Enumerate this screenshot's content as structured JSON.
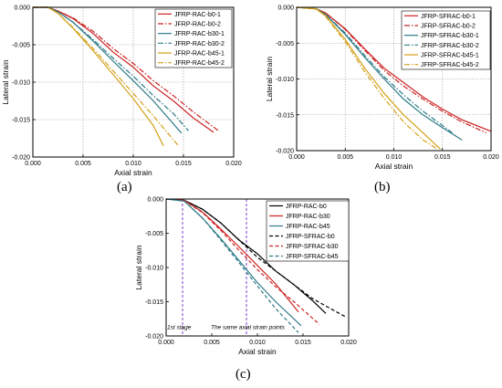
{
  "figure": {
    "panel_labels": [
      "(a)",
      "(b)",
      "(c)"
    ]
  },
  "chart_data": [
    {
      "type": "line",
      "panel": "(a)",
      "xlabel": "Axial strain",
      "ylabel": "Lateral strain",
      "xlim": [
        0.0,
        0.02
      ],
      "ylim": [
        -0.02,
        0.0
      ],
      "x_ticks": [
        "0.000",
        "0.005",
        "0.010",
        "0.015",
        "0.020"
      ],
      "y_ticks": [
        "0.000",
        "-0.005",
        "-0.010",
        "-0.015",
        "-0.020"
      ],
      "x_tick_values": [
        0,
        0.005,
        0.01,
        0.015,
        0.02
      ],
      "y_tick_values": [
        0,
        -0.005,
        -0.01,
        -0.015,
        -0.02
      ],
      "grid": true,
      "legend": "top-right",
      "series": [
        {
          "name": "JFRP-RAC-b0-1",
          "color": "#cc2222",
          "dash": "solid",
          "x": [
            0,
            0.0015,
            0.0025,
            0.004,
            0.006,
            0.008,
            0.01,
            0.012,
            0.014,
            0.016,
            0.018
          ],
          "y": [
            0,
            0,
            -0.0005,
            -0.0015,
            -0.0035,
            -0.006,
            -0.008,
            -0.0105,
            -0.0125,
            -0.0148,
            -0.0167
          ]
        },
        {
          "name": "JFRP-RAC-b0-2",
          "color": "#cc2222",
          "dash": "dashdot",
          "x": [
            0,
            0.0015,
            0.0025,
            0.004,
            0.006,
            0.008,
            0.01,
            0.012,
            0.014,
            0.016,
            0.0185
          ],
          "y": [
            0,
            0,
            -0.0005,
            -0.0014,
            -0.0032,
            -0.0055,
            -0.0075,
            -0.0098,
            -0.0118,
            -0.014,
            -0.0165
          ]
        },
        {
          "name": "JFRP-RAC-b30-1",
          "color": "#2c7a86",
          "dash": "solid",
          "x": [
            0,
            0.0015,
            0.0025,
            0.004,
            0.006,
            0.008,
            0.01,
            0.012,
            0.0135,
            0.0148
          ],
          "y": [
            0,
            0,
            -0.0006,
            -0.002,
            -0.0045,
            -0.0072,
            -0.0098,
            -0.0125,
            -0.0148,
            -0.0168
          ]
        },
        {
          "name": "JFRP-RAC-b30-2",
          "color": "#2c7a86",
          "dash": "dashdot",
          "x": [
            0,
            0.0015,
            0.0025,
            0.004,
            0.006,
            0.008,
            0.01,
            0.012,
            0.014,
            0.0155
          ],
          "y": [
            0,
            0,
            -0.0006,
            -0.002,
            -0.0043,
            -0.0068,
            -0.0092,
            -0.0118,
            -0.0142,
            -0.0165
          ]
        },
        {
          "name": "JFRP-RAC-b45-1",
          "color": "#d4a017",
          "dash": "solid",
          "x": [
            0,
            0.0015,
            0.0025,
            0.004,
            0.006,
            0.008,
            0.01,
            0.012,
            0.013
          ],
          "y": [
            0,
            0,
            -0.0008,
            -0.0028,
            -0.0058,
            -0.009,
            -0.0122,
            -0.0158,
            -0.0185
          ]
        },
        {
          "name": "JFRP-RAC-b45-2",
          "color": "#d4a017",
          "dash": "dashdot",
          "x": [
            0,
            0.0015,
            0.0025,
            0.004,
            0.006,
            0.008,
            0.01,
            0.012,
            0.0145
          ],
          "y": [
            0,
            0,
            -0.0008,
            -0.0027,
            -0.0055,
            -0.0085,
            -0.0115,
            -0.0145,
            -0.0185
          ]
        }
      ]
    },
    {
      "type": "line",
      "panel": "(b)",
      "xlabel": "Axial strain",
      "ylabel": "Lateral strain",
      "xlim": [
        0.0,
        0.02
      ],
      "ylim": [
        -0.02,
        0.0
      ],
      "x_ticks": [
        "0.000",
        "0.005",
        "0.010",
        "0.015",
        "0.020"
      ],
      "y_ticks": [
        "0.000",
        "-0.005",
        "-0.010",
        "-0.015",
        "-0.020"
      ],
      "x_tick_values": [
        0,
        0.005,
        0.01,
        0.015,
        0.02
      ],
      "y_tick_values": [
        0,
        -0.005,
        -0.01,
        -0.015,
        -0.02
      ],
      "grid": true,
      "legend": "top-right",
      "series": [
        {
          "name": "JFRP-SFRAC-b0-1",
          "color": "#cc2222",
          "dash": "solid",
          "x": [
            0,
            0.002,
            0.003,
            0.005,
            0.007,
            0.009,
            0.011,
            0.013,
            0.015,
            0.017,
            0.02
          ],
          "y": [
            0,
            -0.0002,
            -0.0008,
            -0.003,
            -0.0058,
            -0.0085,
            -0.0105,
            -0.0125,
            -0.0142,
            -0.0157,
            -0.0173
          ]
        },
        {
          "name": "JFRP-SFRAC-b0-2",
          "color": "#cc2222",
          "dash": "dashdot",
          "x": [
            0,
            0.002,
            0.003,
            0.005,
            0.007,
            0.009,
            0.011,
            0.013,
            0.015,
            0.017,
            0.0195
          ],
          "y": [
            0,
            -0.0002,
            -0.0008,
            -0.0031,
            -0.006,
            -0.0088,
            -0.011,
            -0.0128,
            -0.0145,
            -0.016,
            -0.0175
          ]
        },
        {
          "name": "JFRP-SFRAC-b30-1",
          "color": "#2c7a86",
          "dash": "solid",
          "x": [
            0,
            0.002,
            0.003,
            0.005,
            0.007,
            0.009,
            0.011,
            0.013,
            0.015,
            0.017
          ],
          "y": [
            0,
            -0.0002,
            -0.001,
            -0.0038,
            -0.007,
            -0.01,
            -0.0128,
            -0.015,
            -0.0168,
            -0.0185
          ]
        },
        {
          "name": "JFRP-SFRAC-b30-2",
          "color": "#2c7a86",
          "dash": "dashdot",
          "x": [
            0,
            0.002,
            0.003,
            0.005,
            0.007,
            0.009,
            0.011,
            0.013,
            0.015,
            0.016
          ],
          "y": [
            0,
            -0.0002,
            -0.001,
            -0.0036,
            -0.0067,
            -0.0097,
            -0.0122,
            -0.0145,
            -0.0165,
            -0.0175
          ]
        },
        {
          "name": "JFRP-SFRAC-b45-1",
          "color": "#d4a017",
          "dash": "solid",
          "x": [
            0,
            0.002,
            0.003,
            0.005,
            0.007,
            0.009,
            0.011,
            0.013,
            0.0148
          ],
          "y": [
            0,
            -0.0002,
            -0.0012,
            -0.0045,
            -0.0085,
            -0.012,
            -0.015,
            -0.0175,
            -0.0198
          ]
        },
        {
          "name": "JFRP-SFRAC-b45-2",
          "color": "#d4a017",
          "dash": "dashdot",
          "x": [
            0,
            0.002,
            0.003,
            0.005,
            0.007,
            0.009,
            0.011,
            0.013,
            0.0145
          ],
          "y": [
            0,
            -0.0002,
            -0.0013,
            -0.0048,
            -0.009,
            -0.0127,
            -0.016,
            -0.0185,
            -0.0198
          ]
        }
      ]
    },
    {
      "type": "line",
      "panel": "(c)",
      "xlabel": "Axial strain",
      "ylabel": "Lateral strain",
      "xlim": [
        0.0,
        0.02
      ],
      "ylim": [
        -0.02,
        0.0
      ],
      "x_ticks": [
        "0.000",
        "0.005",
        "0.010",
        "0.015",
        "0.020"
      ],
      "y_ticks": [
        "0.000",
        "-0.005",
        "-0.010",
        "-0.015",
        "-0.020"
      ],
      "x_tick_values": [
        0,
        0.005,
        0.01,
        0.015,
        0.02
      ],
      "y_tick_values": [
        0,
        -0.005,
        -0.01,
        -0.015,
        -0.02
      ],
      "grid": false,
      "legend": "top-right",
      "vlines": [
        0.0018,
        0.0088
      ],
      "annotations": [
        {
          "text": "1st stage",
          "x": 0.0,
          "y": -0.019
        },
        {
          "text": "The same axial strain points",
          "x": 0.0048,
          "y": -0.019
        }
      ],
      "series": [
        {
          "name": "JFRP-RAC-b0",
          "color": "#000000",
          "dash": "solid",
          "x": [
            0,
            0.002,
            0.004,
            0.006,
            0.008,
            0.01,
            0.012,
            0.014,
            0.016,
            0.0175
          ],
          "y": [
            0,
            -0.0002,
            -0.0015,
            -0.0035,
            -0.006,
            -0.008,
            -0.0105,
            -0.0125,
            -0.0148,
            -0.0167
          ]
        },
        {
          "name": "JFRP-RAC-b30",
          "color": "#cc2222",
          "dash": "solid",
          "x": [
            0,
            0.002,
            0.004,
            0.006,
            0.008,
            0.01,
            0.012,
            0.0145
          ],
          "y": [
            0,
            -0.0002,
            -0.0019,
            -0.0044,
            -0.007,
            -0.0097,
            -0.0124,
            -0.0165
          ]
        },
        {
          "name": "JFRP-RAC-b45",
          "color": "#2c7a86",
          "dash": "solid",
          "x": [
            0,
            0.002,
            0.004,
            0.006,
            0.008,
            0.01,
            0.012,
            0.0148
          ],
          "y": [
            0,
            -0.0003,
            -0.0028,
            -0.0058,
            -0.009,
            -0.0122,
            -0.015,
            -0.0185
          ]
        },
        {
          "name": "JFRP-SFRAC-b0",
          "color": "#000000",
          "dash": "dashed",
          "x": [
            0,
            0.002,
            0.004,
            0.006,
            0.008,
            0.01,
            0.012,
            0.014,
            0.016,
            0.018,
            0.0198
          ],
          "y": [
            0,
            -0.0002,
            -0.0015,
            -0.0035,
            -0.006,
            -0.0085,
            -0.0105,
            -0.0125,
            -0.0145,
            -0.016,
            -0.0173
          ]
        },
        {
          "name": "JFRP-SFRAC-b30",
          "color": "#cc2222",
          "dash": "dashed",
          "x": [
            0,
            0.002,
            0.004,
            0.006,
            0.008,
            0.01,
            0.012,
            0.014,
            0.0168
          ],
          "y": [
            0,
            -0.0002,
            -0.002,
            -0.0046,
            -0.0075,
            -0.0103,
            -0.0128,
            -0.015,
            -0.0183
          ]
        },
        {
          "name": "JFRP-SFRAC-b45",
          "color": "#2c7a86",
          "dash": "dashed",
          "x": [
            0,
            0.002,
            0.004,
            0.006,
            0.008,
            0.01,
            0.012,
            0.0145
          ],
          "y": [
            0,
            -0.0003,
            -0.0028,
            -0.006,
            -0.0093,
            -0.0127,
            -0.016,
            -0.0195
          ]
        }
      ]
    }
  ]
}
